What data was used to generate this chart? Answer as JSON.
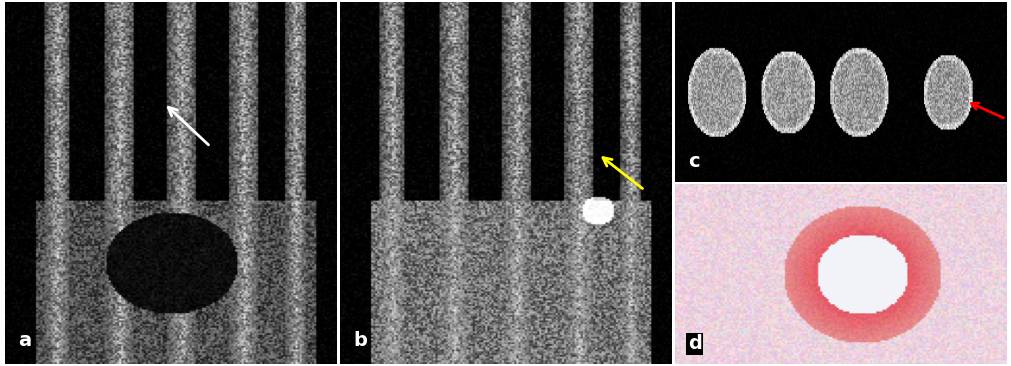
{
  "figure_width": 10.11,
  "figure_height": 3.66,
  "dpi": 100,
  "background_color": "#ffffff",
  "border_color": "#000000",
  "panels": [
    {
      "label": "a",
      "col": 0,
      "row": 0,
      "rowspan": 2,
      "colspan": 1
    },
    {
      "label": "b",
      "col": 1,
      "row": 0,
      "rowspan": 2,
      "colspan": 1
    },
    {
      "label": "c",
      "col": 2,
      "row": 0,
      "rowspan": 1,
      "colspan": 1
    },
    {
      "label": "d",
      "col": 2,
      "row": 1,
      "rowspan": 1,
      "colspan": 1
    }
  ],
  "label_color": "#ffffff",
  "label_fontsize": 14,
  "label_fontweight": "bold",
  "arrow_white_color": "#ffffff",
  "arrow_yellow_color": "#ffff00",
  "arrow_red_color": "#ff0000",
  "panel_a_bg": "#000000",
  "panel_b_bg": "#000000",
  "panel_c_bg": "#111111",
  "panel_d_bg": "#f5e6e8",
  "outer_border_color": "#888888",
  "outer_border_linewidth": 1.5
}
